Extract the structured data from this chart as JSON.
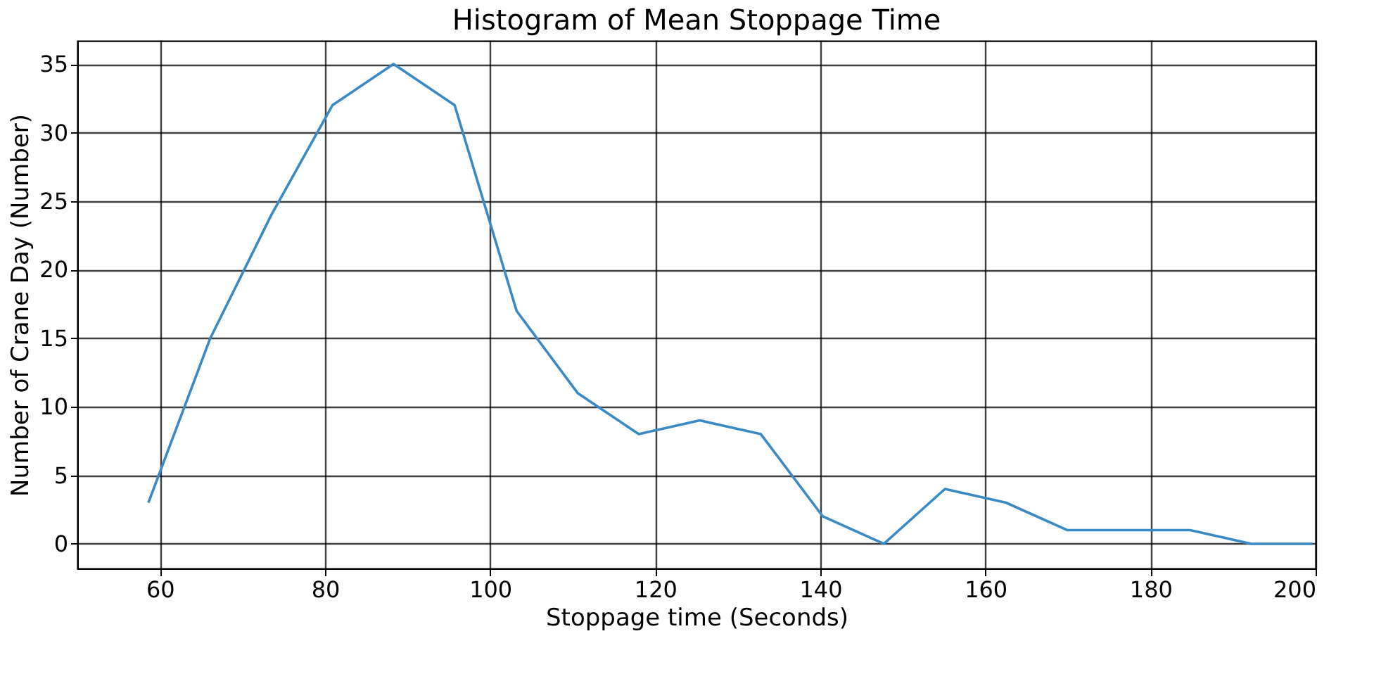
{
  "chart_data": {
    "type": "line",
    "title": "Histogram of Mean Stoppage Time",
    "xlabel": "Stoppage time (Seconds)",
    "ylabel": "Number of Crane Day (Number)",
    "x": [
      58.6,
      66.1,
      73.5,
      80.9,
      88.3,
      95.7,
      103.2,
      110.6,
      118.0,
      125.4,
      132.8,
      140.3,
      147.7,
      155.1,
      162.5,
      169.9,
      177.4,
      184.8,
      192.2,
      199.6
    ],
    "series": [
      {
        "color": "#3a8ac6",
        "values": [
          3,
          15,
          24,
          32,
          35,
          32,
          17,
          11,
          8,
          9,
          8,
          2,
          0,
          4,
          3,
          1,
          1,
          1,
          0,
          0
        ]
      }
    ],
    "xlim": [
      50,
      200
    ],
    "xticks": [
      60,
      80,
      100,
      120,
      140,
      160,
      180,
      200
    ],
    "ylim": [
      -1.8,
      36.7
    ],
    "yticks": [
      0,
      5,
      10,
      15,
      20,
      25,
      30,
      35
    ],
    "grid": true,
    "marker": "none",
    "line_style": "solid"
  }
}
